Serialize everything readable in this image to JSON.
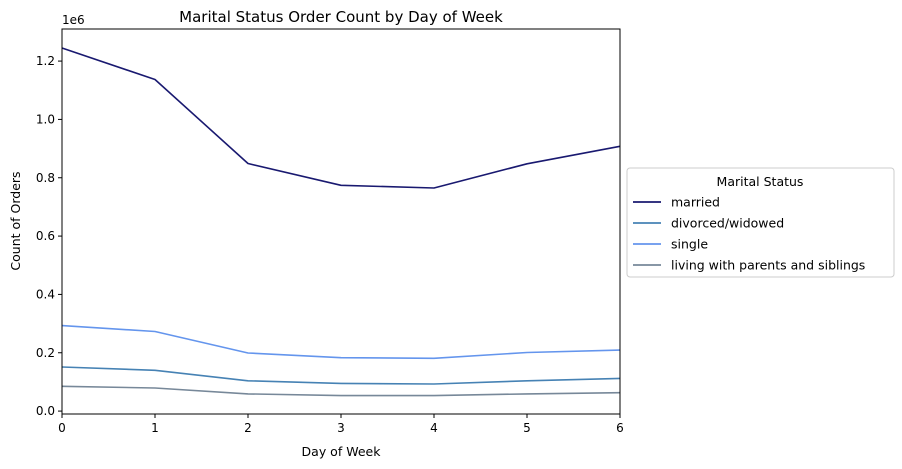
{
  "chart_data": {
    "type": "line",
    "title": "Marital Status Order Count by Day of Week",
    "xlabel": "Day of Week",
    "ylabel": "Count of Orders",
    "y_offset_label": "1e6",
    "x": [
      0,
      1,
      2,
      3,
      4,
      5,
      6
    ],
    "xlim": [
      0,
      6
    ],
    "ylim": [
      -10000,
      1310000
    ],
    "x_ticks": [
      0,
      1,
      2,
      3,
      4,
      5,
      6
    ],
    "x_tick_labels": [
      "0",
      "1",
      "2",
      "3",
      "4",
      "5",
      "6"
    ],
    "y_ticks": [
      0,
      200000,
      400000,
      600000,
      800000,
      1000000,
      1200000
    ],
    "y_tick_labels": [
      "0.0",
      "0.2",
      "0.4",
      "0.6",
      "0.8",
      "1.0",
      "1.2"
    ],
    "grid": false,
    "legend": {
      "title": "Marital Status",
      "placement": "center-right-outside"
    },
    "series": [
      {
        "name": "married",
        "color": "#191970",
        "values": [
          1245000,
          1137000,
          849000,
          774000,
          765000,
          848000,
          908000
        ]
      },
      {
        "name": "divorced/widowed",
        "color": "#4682b4",
        "values": [
          151000,
          140000,
          104000,
          95000,
          93000,
          104000,
          112000
        ]
      },
      {
        "name": "single",
        "color": "#6495ed",
        "values": [
          293000,
          273000,
          199000,
          183000,
          181000,
          201000,
          209000
        ]
      },
      {
        "name": "living with parents and siblings",
        "color": "#778899",
        "values": [
          85000,
          79000,
          59000,
          53000,
          53000,
          59000,
          63000
        ]
      }
    ]
  }
}
